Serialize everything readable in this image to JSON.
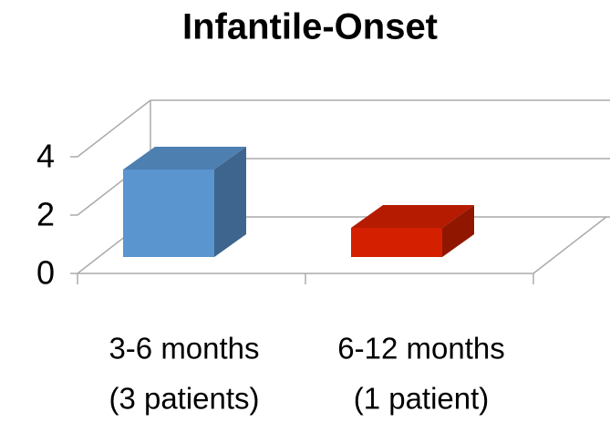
{
  "chart_data": {
    "type": "bar",
    "title": "Infantile-Onset",
    "categories": [
      [
        "3-6 months",
        "(3 patients)"
      ],
      [
        "6-12 months",
        "(1 patient)"
      ]
    ],
    "values": [
      3,
      1
    ],
    "colors": [
      "#5b95d0",
      "#d42000"
    ],
    "ylim": [
      0,
      4
    ],
    "yticks": [
      0,
      2,
      4
    ],
    "grid": true
  }
}
